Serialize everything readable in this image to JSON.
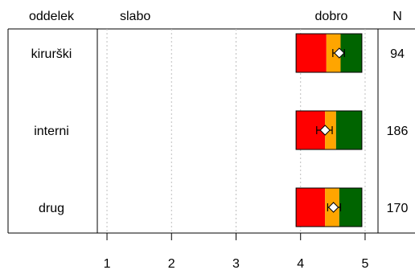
{
  "chart_data": {
    "type": "bar",
    "headers": {
      "group": "oddelek",
      "low": "slabo",
      "high": "dobro",
      "n": "N"
    },
    "categories": [
      "kirurški",
      "interni",
      "drug"
    ],
    "n": [
      "94",
      "186",
      "170"
    ],
    "xlim": [
      0.85,
      5.2
    ],
    "xticks": [
      1,
      2,
      3,
      4,
      5
    ],
    "xtick_labels": [
      "1",
      "2",
      "3",
      "4",
      "5"
    ],
    "grid_vertical": true,
    "rows": [
      {
        "red": [
          3.93,
          4.4
        ],
        "orange": [
          4.4,
          4.62
        ],
        "green": [
          4.62,
          4.95
        ],
        "mean": 4.6,
        "ci": [
          4.5,
          4.68
        ]
      },
      {
        "red": [
          3.93,
          4.38
        ],
        "orange": [
          4.38,
          4.55
        ],
        "green": [
          4.55,
          4.95
        ],
        "mean": 4.38,
        "ci": [
          4.25,
          4.49
        ]
      },
      {
        "red": [
          3.93,
          4.38
        ],
        "orange": [
          4.38,
          4.6
        ],
        "green": [
          4.6,
          4.95
        ],
        "mean": 4.51,
        "ci": [
          4.42,
          4.62
        ]
      }
    ],
    "colors": {
      "red": "#ff0000",
      "orange": "#ffa500",
      "green": "#006400",
      "grid": "#bebebe"
    }
  }
}
